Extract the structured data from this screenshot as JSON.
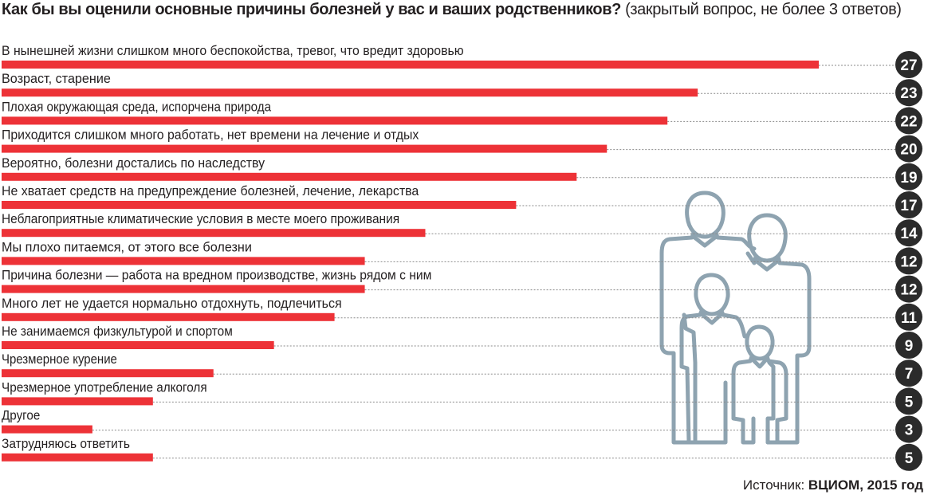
{
  "header": {
    "title": "Как бы вы оценили основные причины болезней у вас и ваших родственников?",
    "note": "(закрытый вопрос, не более 3 ответов)"
  },
  "source": {
    "label": "Источник:",
    "name": "ВЦИОМ, 2015 год"
  },
  "colors": {
    "bar": "#ed3237",
    "badge": "#2b2b2b",
    "illustration": "#8ea3b0"
  },
  "illustration": {
    "icon": "family-icon"
  },
  "chart_data": {
    "type": "bar",
    "orientation": "horizontal",
    "title": "Как бы вы оценили основные причины болезней у вас и ваших родственников?",
    "subtitle": "(закрытый вопрос, не более 3 ответов)",
    "unit": "%",
    "xlim": [
      0,
      30
    ],
    "categories": [
      "В нынешней жизни слишком много беспокойства, тревог, что вредит здоровью",
      "Возраст, старение",
      "Плохая окружающая среда, испорчена природа",
      "Приходится слишком много работать, нет времени на лечение и отдых",
      "Вероятно, болезни достались по наследству",
      "Не хватает средств на предупреждение болезней, лечение, лекарства",
      "Неблагоприятные климатические условия в месте моего проживания",
      "Мы плохо питаемся, от этого все болезни",
      "Причина болезни — работа на вредном производстве, жизнь рядом с ним",
      "Много лет не удается нормально отдохнуть, подлечиться",
      "Не занимаемся физкультурой и спортом",
      "Чрезмерное курение",
      "Чрезмерное употребление алкоголя",
      "Другое",
      "Затрудняюсь ответить"
    ],
    "values": [
      27,
      23,
      22,
      20,
      19,
      17,
      14,
      12,
      12,
      11,
      9,
      7,
      5,
      3,
      5
    ]
  }
}
